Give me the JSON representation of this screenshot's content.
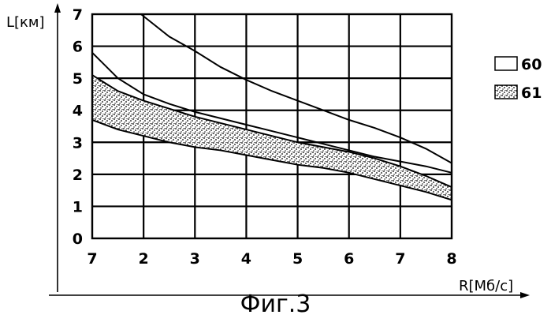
{
  "figure_caption": "Фиг.3",
  "chart_data": {
    "type": "area",
    "ylabel": "L[км]",
    "xlabel": "R[Мб/с]",
    "x_tick_labels": [
      "7",
      "2",
      "3",
      "4",
      "5",
      "6",
      "7",
      "8"
    ],
    "y_tick_labels": [
      "0",
      "1",
      "2",
      "3",
      "4",
      "5",
      "6",
      "7"
    ],
    "ylim": [
      0,
      7
    ],
    "xlim": [
      1,
      8
    ],
    "grid": true,
    "legend_position": "right",
    "legend": [
      {
        "id": "60",
        "label": "60",
        "style": "open"
      },
      {
        "id": "61",
        "label": "61",
        "style": "stippled"
      }
    ],
    "series": [
      {
        "legend": "60",
        "x": [
          1.95,
          2.5,
          3,
          3.5,
          4,
          4.5,
          5,
          5.5,
          6,
          6.5,
          7,
          7.5,
          8
        ],
        "values": [
          7.0,
          6.3,
          5.85,
          5.35,
          4.95,
          4.6,
          4.3,
          4.0,
          3.7,
          3.45,
          3.15,
          2.8,
          2.35
        ]
      },
      {
        "legend": "60",
        "x": [
          1,
          1.5,
          2,
          2.5,
          3,
          3.5,
          4,
          4.5,
          5,
          5.5,
          6,
          6.5,
          7,
          7.5,
          8
        ],
        "values": [
          5.8,
          5.0,
          4.5,
          4.2,
          3.95,
          3.75,
          3.55,
          3.35,
          3.15,
          2.95,
          2.75,
          2.55,
          2.4,
          2.25,
          2.05
        ]
      },
      {
        "legend": "61",
        "x": [
          1,
          1.5,
          2,
          2.5,
          3,
          3.5,
          4,
          4.5,
          5,
          5.5,
          6,
          6.5,
          7,
          7.5,
          8
        ],
        "upper": [
          5.1,
          4.6,
          4.3,
          4.05,
          3.8,
          3.6,
          3.4,
          3.2,
          3.0,
          2.85,
          2.7,
          2.5,
          2.25,
          1.95,
          1.6
        ],
        "lower": [
          3.7,
          3.4,
          3.2,
          3.0,
          2.85,
          2.75,
          2.6,
          2.45,
          2.3,
          2.2,
          2.05,
          1.85,
          1.65,
          1.45,
          1.2
        ]
      }
    ]
  }
}
